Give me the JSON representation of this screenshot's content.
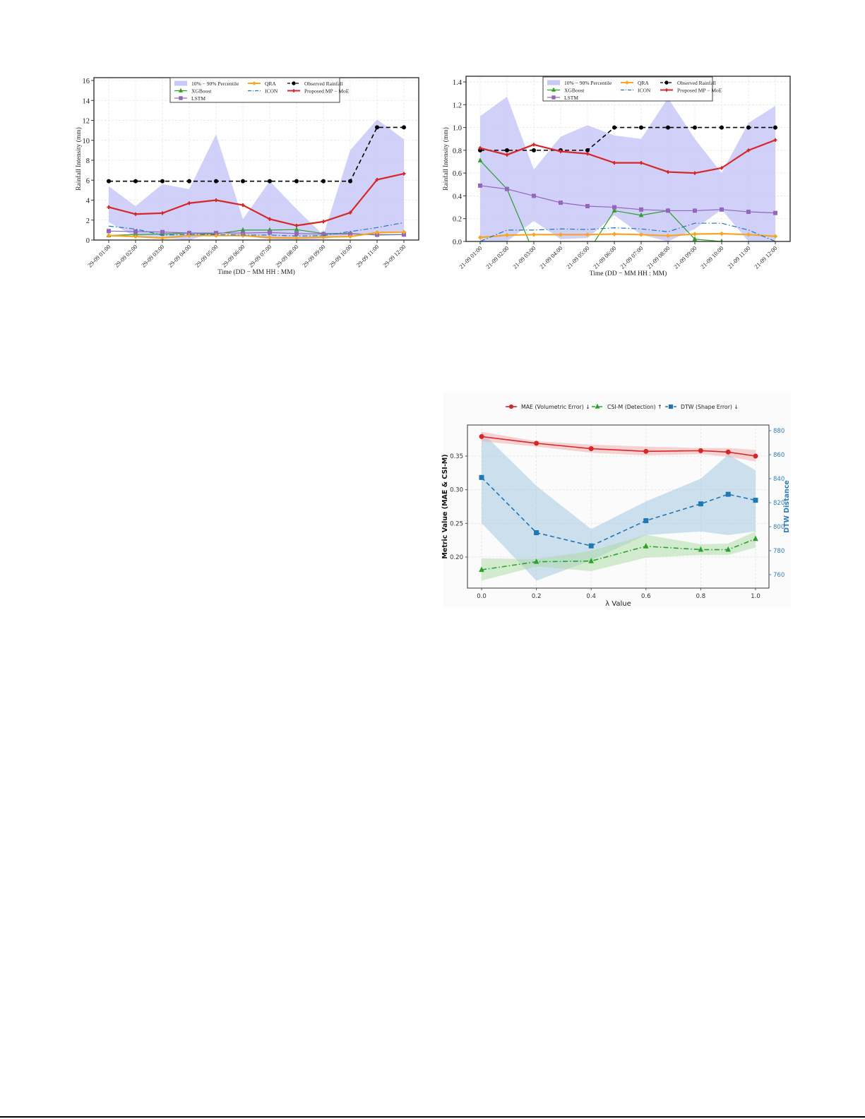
{
  "chart_data": [
    {
      "id": "chart1",
      "type": "line",
      "title": "",
      "xlabel": "Time (DD − MM HH : MM)",
      "ylabel": "Rainfall Intensity (mm)",
      "ylim": [
        0,
        16
      ],
      "yticks": [
        0,
        2,
        4,
        6,
        8,
        10,
        12,
        14,
        16
      ],
      "grid": true,
      "legend_position": "upper center",
      "categories": [
        "29-09 01:00",
        "29-09 02:00",
        "29-09 03:00",
        "29-09 04:00",
        "29-09 05:00",
        "29-09 06:00",
        "29-09 07:00",
        "29-09 08:00",
        "29-09 09:00",
        "29-09 10:00",
        "29-09 11:00",
        "29-09 12:00"
      ],
      "band": {
        "name": "10% − 90% Percentile",
        "color": "#c8c8f8",
        "upper": [
          5.4,
          3.4,
          5.6,
          5.1,
          10.6,
          2.1,
          5.9,
          3.1,
          0.5,
          9.0,
          12.1,
          10.1
        ],
        "lower": [
          1.8,
          0.3,
          0.2,
          0.0,
          0.8,
          0.4,
          0.1,
          0.0,
          0.1,
          0.5,
          0.8,
          0.9
        ]
      },
      "series": [
        {
          "name": "XGBoost",
          "color": "#2ca02c",
          "marker": "triangle",
          "dash": "solid",
          "values": [
            0.45,
            0.55,
            0.6,
            0.7,
            0.6,
            1.0,
            1.0,
            1.05,
            0.65,
            0.65,
            0.5,
            0.55
          ]
        },
        {
          "name": "LSTM",
          "color": "#9467bd",
          "marker": "square",
          "dash": "solid",
          "values": [
            0.9,
            0.85,
            0.8,
            0.7,
            0.7,
            0.7,
            0.75,
            0.65,
            0.6,
            0.6,
            0.55,
            0.55
          ]
        },
        {
          "name": "QRA",
          "color": "#f5a623",
          "marker": "diamond",
          "dash": "solid",
          "values": [
            0.45,
            0.35,
            0.2,
            0.45,
            0.45,
            0.45,
            0.25,
            0.2,
            0.3,
            0.35,
            0.75,
            0.8
          ]
        },
        {
          "name": "ICON",
          "color": "#1f77b4",
          "marker": "none",
          "dash": "dashdot",
          "values": [
            1.4,
            1.1,
            0.5,
            0.55,
            0.55,
            0.5,
            0.5,
            0.4,
            0.45,
            0.85,
            1.25,
            1.75
          ]
        },
        {
          "name": "Observed Rainfall",
          "color": "#000000",
          "marker": "circle",
          "dash": "dashed",
          "values": [
            5.9,
            5.9,
            5.9,
            5.9,
            5.9,
            5.9,
            5.9,
            5.9,
            5.9,
            5.9,
            11.3,
            11.3
          ]
        },
        {
          "name": "Proposed MP − MoE",
          "color": "#d62728",
          "marker": "plus",
          "dash": "solid",
          "values": [
            3.3,
            2.6,
            2.7,
            3.7,
            4.0,
            3.5,
            2.1,
            1.45,
            1.85,
            2.75,
            6.05,
            6.65
          ]
        }
      ]
    },
    {
      "id": "chart2",
      "type": "line",
      "title": "",
      "xlabel": "Time (DD − MM HH : MM)",
      "ylabel": "Rainfall Intensity (mm)",
      "ylim": [
        0,
        1.4
      ],
      "yticks": [
        0.0,
        0.2,
        0.4,
        0.6,
        0.8,
        1.0,
        1.2,
        1.4
      ],
      "grid": true,
      "legend_position": "upper center",
      "categories": [
        "21-09 01:00",
        "21-09 02:00",
        "21-09 03:00",
        "21-09 04:00",
        "21-09 05:00",
        "21-09 06:00",
        "21-09 07:00",
        "21-09 08:00",
        "21-09 09:00",
        "21-09 10:00",
        "21-09 11:00",
        "21-09 12:00"
      ],
      "band": {
        "name": "10% − 90% Percentile",
        "color": "#c8c8f8",
        "upper": [
          1.1,
          1.27,
          0.63,
          0.92,
          1.02,
          0.93,
          0.9,
          1.26,
          0.9,
          0.6,
          1.04,
          1.19
        ],
        "lower": [
          0.0,
          0.0,
          0.18,
          0.02,
          0.03,
          0.23,
          0.06,
          0.0,
          0.11,
          0.28,
          0.0,
          0.0
        ]
      },
      "series": [
        {
          "name": "XGBoost",
          "color": "#2ca02c",
          "marker": "triangle",
          "dash": "solid",
          "values": [
            0.71,
            0.46,
            -0.1,
            null,
            -0.1,
            0.27,
            0.23,
            0.27,
            0.02,
            0.0,
            null,
            null
          ]
        },
        {
          "name": "LSTM",
          "color": "#9467bd",
          "marker": "square",
          "dash": "solid",
          "values": [
            0.49,
            0.46,
            0.4,
            0.34,
            0.31,
            0.3,
            0.28,
            0.27,
            0.27,
            0.28,
            0.26,
            0.25
          ]
        },
        {
          "name": "QRA",
          "color": "#f5a623",
          "marker": "diamond",
          "dash": "solid",
          "values": [
            0.035,
            0.055,
            0.06,
            0.06,
            0.06,
            0.065,
            0.06,
            0.05,
            0.065,
            0.068,
            0.06,
            0.045
          ]
        },
        {
          "name": "ICON",
          "color": "#1f77b4",
          "marker": "none",
          "dash": "dashdot",
          "values": [
            0.0,
            0.1,
            0.1,
            0.11,
            0.105,
            0.12,
            0.11,
            0.085,
            0.16,
            0.16,
            0.1,
            0.0
          ]
        },
        {
          "name": "Observed Rainfall",
          "color": "#000000",
          "marker": "circle",
          "dash": "dashed",
          "values": [
            0.8,
            0.8,
            0.8,
            0.8,
            0.8,
            1.0,
            1.0,
            1.0,
            1.0,
            1.0,
            1.0,
            1.0
          ]
        },
        {
          "name": "Proposed MP − MoE",
          "color": "#d62728",
          "marker": "plus",
          "dash": "solid",
          "values": [
            0.82,
            0.76,
            0.85,
            0.79,
            0.77,
            0.69,
            0.69,
            0.61,
            0.6,
            0.645,
            0.8,
            0.89
          ]
        }
      ]
    },
    {
      "id": "chart3",
      "type": "line",
      "title": "",
      "xlabel": "λ Value",
      "ylabel": "Metric Value (MAE & CSI-M)",
      "ylabel_right": "DTW Distance",
      "x": [
        0.0,
        0.2,
        0.4,
        0.6,
        0.8,
        0.9,
        1.0
      ],
      "xticks": [
        0.0,
        0.2,
        0.4,
        0.6,
        0.8,
        1.0
      ],
      "yticks_left": [
        0.2,
        0.25,
        0.3,
        0.35
      ],
      "yticks_right": [
        760,
        780,
        800,
        820,
        840,
        860,
        880
      ],
      "ylim_left": [
        0.155,
        0.395
      ],
      "ylim_right": [
        749,
        885
      ],
      "grid": true,
      "legend_position": "top, outside",
      "series": [
        {
          "name": "MAE (Volumetric Error) ↓",
          "axis": "left",
          "color": "#d62728",
          "marker": "circle",
          "dash": "solid",
          "values": [
            0.379,
            0.369,
            0.361,
            0.357,
            0.358,
            0.356,
            0.35
          ],
          "band_upper": [
            0.386,
            0.372,
            0.367,
            0.364,
            0.362,
            0.362,
            0.359
          ],
          "band_lower": [
            0.372,
            0.364,
            0.355,
            0.351,
            0.353,
            0.349,
            0.342
          ]
        },
        {
          "name": "CSI-M (Detection) ↑",
          "axis": "left",
          "color": "#2ca02c",
          "marker": "triangle",
          "dash": "dashdot",
          "values": [
            0.181,
            0.193,
            0.194,
            0.216,
            0.211,
            0.211,
            0.227
          ],
          "band_upper": [
            0.198,
            0.197,
            0.209,
            0.233,
            0.219,
            0.22,
            0.238
          ],
          "band_lower": [
            0.165,
            0.186,
            0.179,
            0.199,
            0.203,
            0.203,
            0.214
          ]
        },
        {
          "name": "DTW (Shape Error) ↓",
          "axis": "right",
          "color": "#1f77b4",
          "marker": "square",
          "dash": "dashed",
          "values": [
            841,
            795,
            784,
            805,
            819,
            827,
            822
          ],
          "band_upper": [
            879,
            834,
            798,
            821,
            840,
            860,
            847
          ],
          "band_lower": [
            803,
            755,
            772,
            793,
            796,
            793,
            796
          ]
        }
      ]
    }
  ]
}
